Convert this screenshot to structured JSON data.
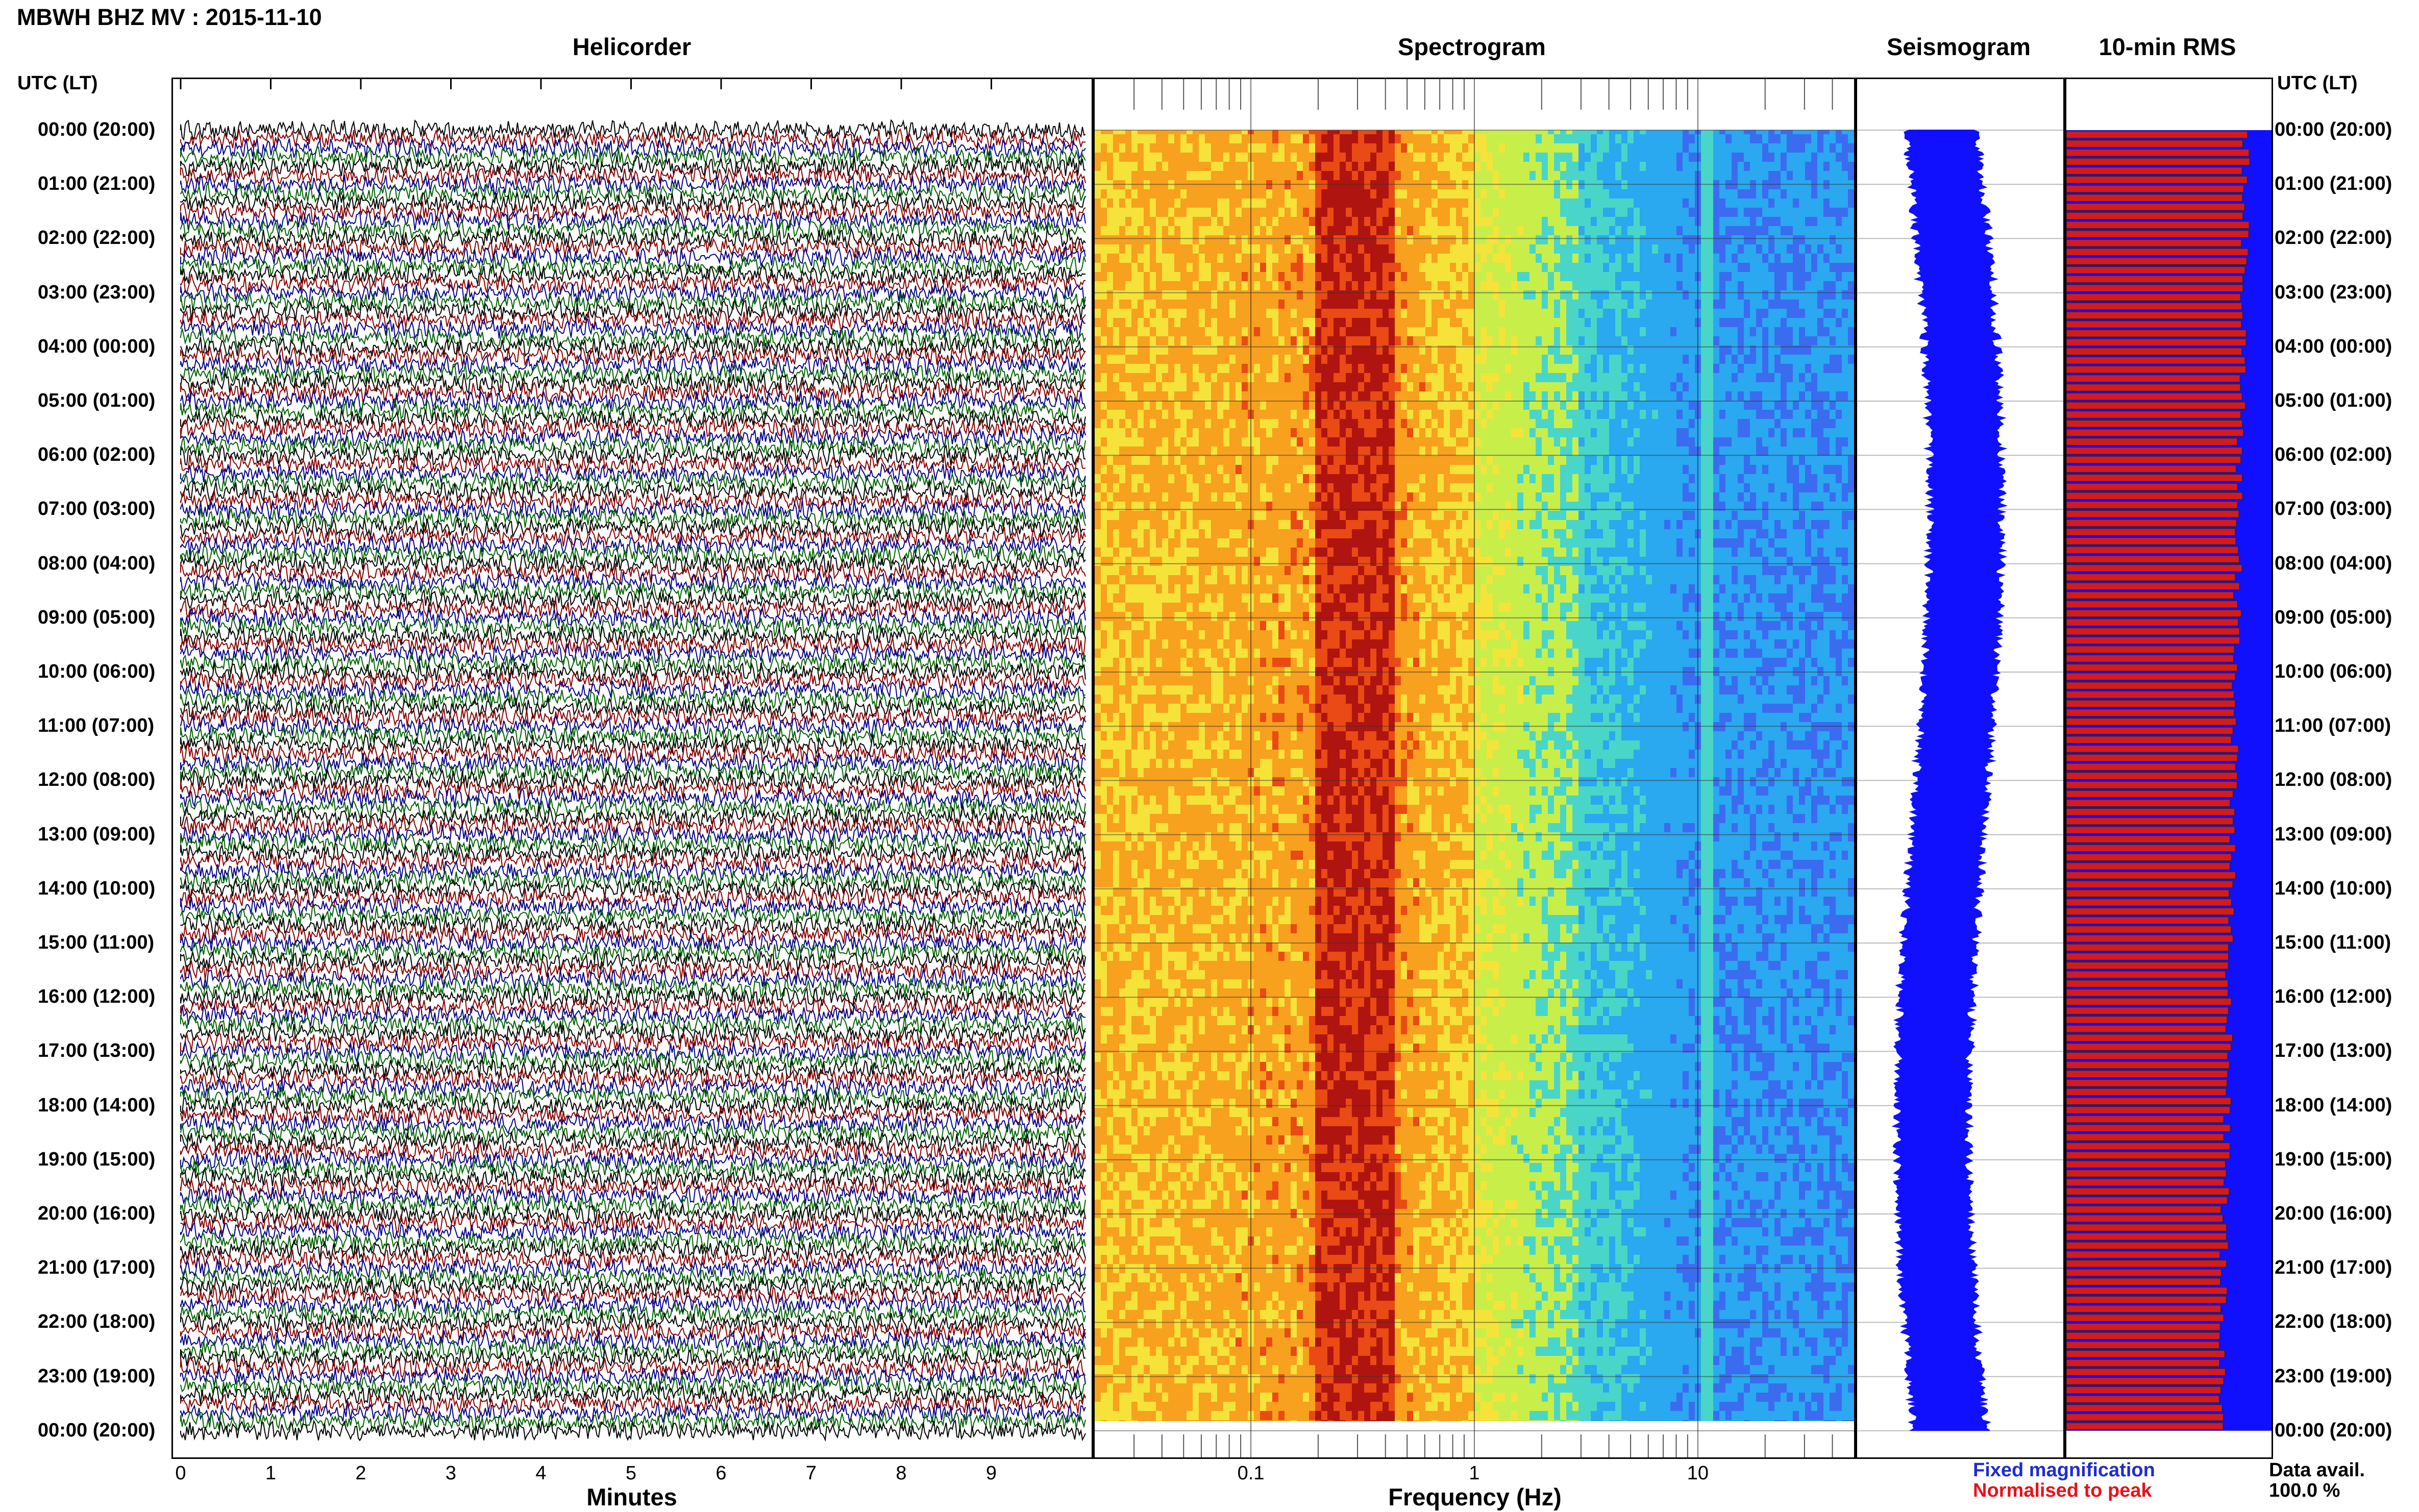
{
  "title": "MBWH BHZ MV : 2015-11-10",
  "panels": {
    "helicorder": "Helicorder",
    "spectrogram": "Spectrogram",
    "seismogram": "Seismogram",
    "rms": "10-min RMS"
  },
  "utc_header_left": "UTC (LT)",
  "utc_header_right": "UTC (LT)",
  "time_labels": [
    "00:00 (20:00)",
    "01:00 (21:00)",
    "02:00 (22:00)",
    "03:00 (23:00)",
    "04:00 (00:00)",
    "05:00 (01:00)",
    "06:00 (02:00)",
    "07:00 (03:00)",
    "08:00 (04:00)",
    "09:00 (05:00)",
    "10:00 (06:00)",
    "11:00 (07:00)",
    "12:00 (08:00)",
    "13:00 (09:00)",
    "14:00 (10:00)",
    "15:00 (11:00)",
    "16:00 (12:00)",
    "17:00 (13:00)",
    "18:00 (14:00)",
    "19:00 (15:00)",
    "20:00 (16:00)",
    "21:00 (17:00)",
    "22:00 (18:00)",
    "23:00 (19:00)",
    "00:00 (20:00)"
  ],
  "helicorder_xlabel": "Minutes",
  "helicorder_ticks": [
    "0",
    "1",
    "2",
    "3",
    "4",
    "5",
    "6",
    "7",
    "8",
    "9"
  ],
  "spectrogram_xlabel": "Frequency (Hz)",
  "spectrogram_ticks": [
    "0.1",
    "1",
    "10"
  ],
  "legend": {
    "fixed": "Fixed magnification",
    "normalised": "Normalised to peak"
  },
  "data_avail": {
    "label": "Data avail.",
    "value": "100.0 %"
  },
  "colors": {
    "trace": [
      "#000000",
      "#8b0000",
      "#00008b",
      "#006400"
    ],
    "seismogram": "#1010ff",
    "rms_norm": "#d41a1a",
    "rms_fixed": "#1010ff"
  },
  "chart_data": [
    {
      "type": "line",
      "title": "Helicorder",
      "xlabel": "Minutes",
      "xlim": [
        0,
        10
      ],
      "ylabel": "UTC (LT)",
      "rows_per_hour": 6,
      "hours": 24
    },
    {
      "type": "heatmap",
      "title": "Spectrogram",
      "xlabel": "Frequency (Hz)",
      "xscale": "log",
      "xlim": [
        0.02,
        50
      ],
      "peak_frequency_band_hz": [
        0.2,
        0.4
      ],
      "notable_line_hz": 11
    },
    {
      "type": "line",
      "title": "Seismogram",
      "orientation": "vertical"
    },
    {
      "type": "bar",
      "title": "10-min RMS",
      "orientation": "horizontal",
      "series": [
        {
          "name": "Fixed magnification",
          "values": "constant 100%"
        },
        {
          "name": "Normalised to peak",
          "trend": "decreasing slightly over the day, ~0.88 to ~0.75 of full width"
        }
      ]
    }
  ]
}
